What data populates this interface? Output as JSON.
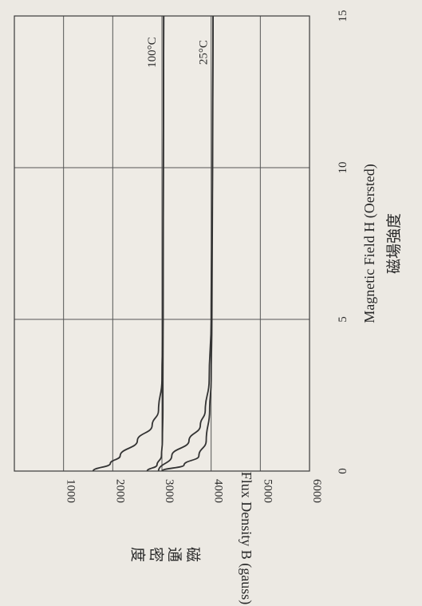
{
  "chart_data": {
    "type": "line",
    "orientation": "rotated-90-clockwise",
    "x_label": "Magnetic Field H (Oersted)",
    "x_label_cjk": "磁場強度",
    "y_label": "Flux Density B (gauss)",
    "y_label_cjk": "磁通密度",
    "x_ticks": [
      "0",
      "5",
      "10",
      "15"
    ],
    "y_ticks": [
      "1000",
      "2000",
      "3000",
      "4000",
      "5000",
      "6000"
    ],
    "xlim": [
      0,
      15
    ],
    "ylim": [
      0,
      6000
    ],
    "grid": true,
    "series": [
      {
        "name": "25°C",
        "label_at_H": 13.8,
        "label_at_B": 4000,
        "points": [
          [
            0,
            3000
          ],
          [
            0.2,
            3450
          ],
          [
            0.5,
            3750
          ],
          [
            1,
            3900
          ],
          [
            2,
            3970
          ],
          [
            3,
            4000
          ],
          [
            5,
            4015
          ],
          [
            10,
            4030
          ],
          [
            15,
            4040
          ]
        ]
      },
      {
        "name": "25°C",
        "label_at_H": 13.8,
        "label_at_B": 4000,
        "points": [
          [
            0,
            2930
          ],
          [
            0.5,
            3200
          ],
          [
            1,
            3550
          ],
          [
            1.5,
            3780
          ],
          [
            2,
            3880
          ],
          [
            3,
            3960
          ],
          [
            5,
            4000
          ],
          [
            10,
            4025
          ],
          [
            15,
            4040
          ]
        ]
      },
      {
        "name": "100°C",
        "label_at_H": 13.8,
        "label_at_B": 2950,
        "points": [
          [
            0,
            2700
          ],
          [
            0.2,
            2900
          ],
          [
            0.5,
            2990
          ],
          [
            1,
            3010
          ],
          [
            2,
            3020
          ],
          [
            3,
            3020
          ],
          [
            5,
            3025
          ],
          [
            10,
            3030
          ],
          [
            15,
            3035
          ]
        ]
      },
      {
        "name": "100°C",
        "label_at_H": 13.8,
        "label_at_B": 2950,
        "points": [
          [
            0,
            1600
          ],
          [
            0.25,
            1950
          ],
          [
            0.5,
            2150
          ],
          [
            1,
            2500
          ],
          [
            1.5,
            2800
          ],
          [
            2,
            2930
          ],
          [
            3,
            3000
          ],
          [
            5,
            3020
          ],
          [
            10,
            3030
          ],
          [
            15,
            3035
          ]
        ]
      }
    ]
  }
}
